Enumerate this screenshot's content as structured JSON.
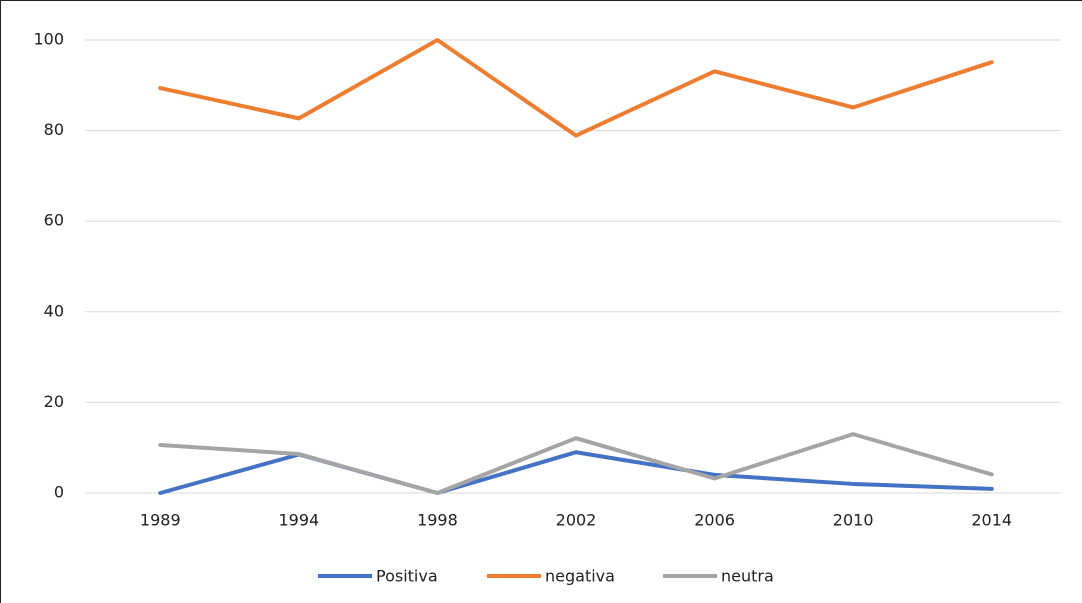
{
  "chart_data": {
    "type": "line",
    "categories": [
      "1989",
      "1994",
      "1998",
      "2002",
      "2006",
      "2010",
      "2014"
    ],
    "series": [
      {
        "name": "Positiva",
        "color": "#4472c4",
        "values": [
          0,
          8.5,
          0,
          9,
          4,
          2,
          0.9
        ]
      },
      {
        "name": "negativa",
        "color": "#ed7d31",
        "values": [
          89.4,
          82.7,
          100,
          78.9,
          93.1,
          85.1,
          95.1
        ]
      },
      {
        "name": "neutra",
        "color": "#a5a5a5",
        "values": [
          10.6,
          8.6,
          0,
          12.1,
          3.2,
          13,
          4.1
        ]
      }
    ],
    "ylim": [
      0,
      100
    ],
    "yticks": [
      0,
      20,
      40,
      60,
      80,
      100
    ],
    "grid": true,
    "legend": "bottom"
  }
}
